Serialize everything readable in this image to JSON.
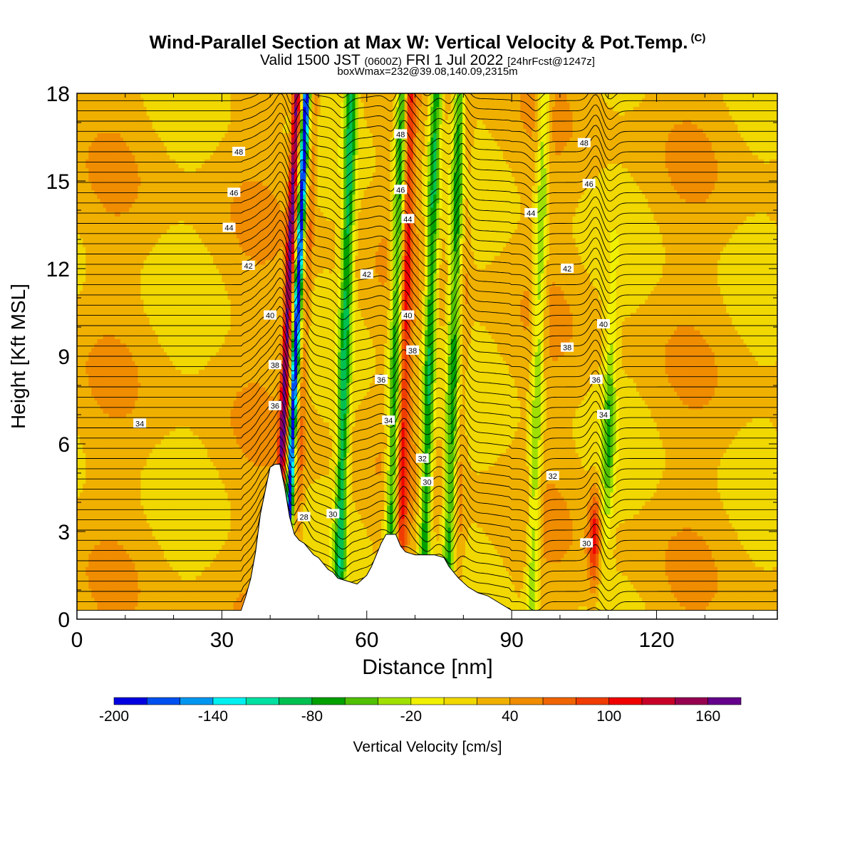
{
  "header": {
    "title": "Wind-Parallel Section at Max W: Vertical Velocity & Pot.Temp.",
    "copyright": "(C)",
    "valid_prefix": "Valid 1500 JST",
    "valid_utc": "(0600Z)",
    "valid_date": "FRI 1 Jul 2022",
    "forecast": "[24hrFcst@1247z]",
    "boxinfo": "boxWmax=232@39.08,140.09,2315m"
  },
  "chart_data": {
    "type": "heatmap",
    "xlabel": "Distance [nm]",
    "ylabel": "Height [Kft MSL]",
    "xlim": [
      0,
      145
    ],
    "ylim": [
      0,
      18
    ],
    "x_ticks": [
      0,
      30,
      60,
      90,
      120
    ],
    "y_ticks": [
      0,
      3,
      6,
      9,
      12,
      15,
      18
    ],
    "colorbar": {
      "label": "Vertical Velocity [cm/s]",
      "tick_labels": [
        "-200",
        "-140",
        "-80",
        "-20",
        "40",
        "100",
        "160"
      ],
      "tick_values": [
        -200,
        -140,
        -80,
        -20,
        40,
        100,
        160
      ],
      "range": [
        -200,
        180
      ],
      "colors": [
        "#0000e0",
        "#0050f0",
        "#0096f0",
        "#00f0f0",
        "#00e0a0",
        "#00c050",
        "#00a000",
        "#50c000",
        "#a0e000",
        "#f0f000",
        "#f0d800",
        "#f0b000",
        "#f08c00",
        "#f06400",
        "#f03c00",
        "#f00000",
        "#c80028",
        "#960050",
        "#64008c"
      ]
    },
    "background_color": "#ffd800",
    "updraft_bands": [
      {
        "x": 42.5,
        "w_max": 170
      },
      {
        "x": 46.5,
        "w_max": 60
      },
      {
        "x": 67.5,
        "w_max": 100
      },
      {
        "x": 79.5,
        "w_max": 50
      },
      {
        "x": 107.5,
        "w_max": 110
      }
    ],
    "downdraft_bands": [
      {
        "x": 44.5,
        "w_min": -200
      },
      {
        "x": 55.0,
        "w_min": -80
      },
      {
        "x": 65.5,
        "w_min": -80
      },
      {
        "x": 72.5,
        "w_min": -80
      },
      {
        "x": 77.5,
        "w_min": -60
      },
      {
        "x": 95.0,
        "w_min": -40
      },
      {
        "x": 110.0,
        "w_min": -50
      }
    ],
    "terrain_kft": [
      [
        0,
        0.3
      ],
      [
        34,
        0.3
      ],
      [
        35,
        0.8
      ],
      [
        36,
        1.4
      ],
      [
        37,
        2.3
      ],
      [
        38,
        3.6
      ],
      [
        39,
        4.4
      ],
      [
        40,
        5.2
      ],
      [
        41,
        5.3
      ],
      [
        42,
        5.3
      ],
      [
        43,
        4.5
      ],
      [
        44,
        3.5
      ],
      [
        45,
        2.9
      ],
      [
        46,
        2.7
      ],
      [
        47,
        2.6
      ],
      [
        48,
        2.4
      ],
      [
        49,
        2.2
      ],
      [
        50,
        2.1
      ],
      [
        51,
        1.9
      ],
      [
        52,
        1.7
      ],
      [
        53,
        1.6
      ],
      [
        54,
        1.4
      ],
      [
        56,
        1.3
      ],
      [
        58,
        1.2
      ],
      [
        60,
        1.5
      ],
      [
        61,
        1.8
      ],
      [
        62,
        2.2
      ],
      [
        63,
        2.6
      ],
      [
        64,
        2.9
      ],
      [
        66,
        2.9
      ],
      [
        67,
        2.5
      ],
      [
        68,
        2.3
      ],
      [
        70,
        2.2
      ],
      [
        74,
        2.2
      ],
      [
        76,
        2.1
      ],
      [
        77,
        1.8
      ],
      [
        79,
        1.4
      ],
      [
        81,
        1.1
      ],
      [
        83,
        0.9
      ],
      [
        85,
        0.8
      ],
      [
        87,
        0.6
      ],
      [
        89,
        0.4
      ],
      [
        90,
        0.3
      ],
      [
        145,
        0.3
      ]
    ],
    "theta_contour_labels": [
      {
        "x": 13.0,
        "y": 6.7,
        "v": "34"
      },
      {
        "x": 33.5,
        "y": 16.0,
        "v": "48"
      },
      {
        "x": 32.5,
        "y": 14.6,
        "v": "46"
      },
      {
        "x": 31.5,
        "y": 13.4,
        "v": "44"
      },
      {
        "x": 35.5,
        "y": 12.1,
        "v": "42"
      },
      {
        "x": 40.0,
        "y": 10.4,
        "v": "40"
      },
      {
        "x": 41.0,
        "y": 8.7,
        "v": "38"
      },
      {
        "x": 41.0,
        "y": 7.3,
        "v": "36"
      },
      {
        "x": 47.0,
        "y": 3.5,
        "v": "28"
      },
      {
        "x": 53.0,
        "y": 3.6,
        "v": "30"
      },
      {
        "x": 60.0,
        "y": 11.8,
        "v": "42"
      },
      {
        "x": 63.0,
        "y": 8.2,
        "v": "36"
      },
      {
        "x": 64.5,
        "y": 6.8,
        "v": "34"
      },
      {
        "x": 67.0,
        "y": 16.6,
        "v": "48"
      },
      {
        "x": 67.0,
        "y": 14.7,
        "v": "46"
      },
      {
        "x": 68.5,
        "y": 13.7,
        "v": "44"
      },
      {
        "x": 68.5,
        "y": 10.4,
        "v": "40"
      },
      {
        "x": 69.5,
        "y": 9.2,
        "v": "38"
      },
      {
        "x": 71.5,
        "y": 5.5,
        "v": "32"
      },
      {
        "x": 72.5,
        "y": 4.7,
        "v": "30"
      },
      {
        "x": 94.0,
        "y": 13.9,
        "v": "44"
      },
      {
        "x": 101.5,
        "y": 12.0,
        "v": "42"
      },
      {
        "x": 101.5,
        "y": 9.3,
        "v": "38"
      },
      {
        "x": 98.5,
        "y": 4.9,
        "v": "32"
      },
      {
        "x": 105.0,
        "y": 16.3,
        "v": "48"
      },
      {
        "x": 106.0,
        "y": 14.9,
        "v": "46"
      },
      {
        "x": 109.0,
        "y": 10.1,
        "v": "40"
      },
      {
        "x": 107.5,
        "y": 8.2,
        "v": "36"
      },
      {
        "x": 109.0,
        "y": 7.0,
        "v": "34"
      },
      {
        "x": 105.5,
        "y": 2.6,
        "v": "30"
      }
    ]
  }
}
